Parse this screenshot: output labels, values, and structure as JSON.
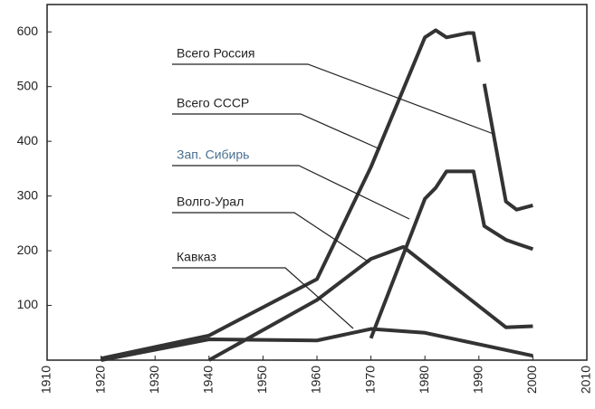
{
  "chart_data": {
    "type": "line",
    "xlim": [
      1910,
      2010
    ],
    "xticks": [
      1910,
      1920,
      1930,
      1940,
      1950,
      1960,
      1970,
      1980,
      1990,
      2000,
      2010
    ],
    "ylim": [
      0,
      650
    ],
    "yticks": [
      100,
      200,
      300,
      400,
      500,
      600
    ],
    "series": [
      {
        "name": "Всего Россия",
        "color": "#333333",
        "x": [
          1991,
          1995,
          1997,
          2000
        ],
        "values": [
          505,
          290,
          275,
          283
        ]
      },
      {
        "name": "Всего СССР",
        "color": "#333333",
        "x": [
          1920,
          1940,
          1960,
          1970,
          1980,
          1982,
          1984,
          1988,
          1989,
          1990
        ],
        "values": [
          3,
          45,
          148,
          353,
          590,
          603,
          590,
          598,
          598,
          545
        ]
      },
      {
        "name": "Зап. Сибирь",
        "color": "#333333",
        "x": [
          1970,
          1980,
          1982,
          1984,
          1988,
          1989,
          1991,
          1995,
          1997,
          2000
        ],
        "values": [
          40,
          295,
          315,
          345,
          345,
          345,
          245,
          220,
          213,
          203
        ]
      },
      {
        "name": "Волго-Урал",
        "color": "#333333",
        "x": [
          1940,
          1960,
          1970,
          1976,
          1995,
          2000
        ],
        "values": [
          0,
          110,
          185,
          207,
          60,
          62
        ]
      },
      {
        "name": "Кавказ",
        "color": "#333333",
        "x": [
          1920,
          1940,
          1960,
          1970,
          1980,
          2000
        ],
        "values": [
          0,
          38,
          36,
          57,
          50,
          8
        ]
      }
    ]
  }
}
